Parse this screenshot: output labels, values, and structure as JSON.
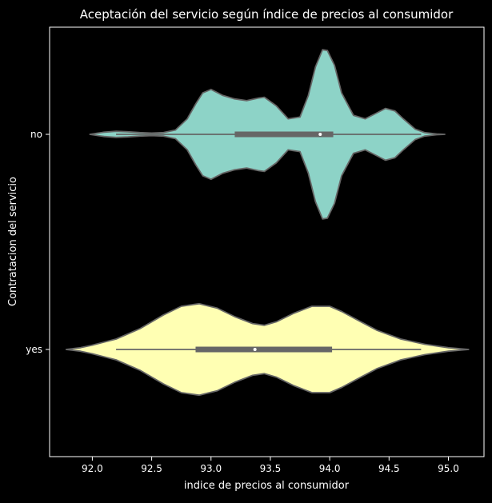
{
  "chart_data": {
    "type": "violin",
    "orientation": "horizontal",
    "title": "Aceptación del servicio según índice de precios al consumidor",
    "xlabel": "indice de precios al consumidor",
    "ylabel": "Contratacion del servicio",
    "xlim": [
      91.64,
      95.3
    ],
    "xticks": [
      92.0,
      92.5,
      93.0,
      93.5,
      94.0,
      94.5,
      95.0
    ],
    "xtick_labels": [
      "92.0",
      "92.5",
      "93.0",
      "93.5",
      "94.0",
      "94.5",
      "95.0"
    ],
    "categories": [
      "no",
      "yes"
    ],
    "series": [
      {
        "name": "no",
        "color": "#8dd3c7",
        "whisker": [
          92.2,
          94.77
        ],
        "q1": 93.2,
        "median": 93.92,
        "q3": 94.03,
        "density": [
          [
            91.98,
            0.0
          ],
          [
            92.05,
            0.015
          ],
          [
            92.1,
            0.025
          ],
          [
            92.2,
            0.035
          ],
          [
            92.3,
            0.03
          ],
          [
            92.4,
            0.02
          ],
          [
            92.5,
            0.015
          ],
          [
            92.6,
            0.02
          ],
          [
            92.7,
            0.05
          ],
          [
            92.8,
            0.18
          ],
          [
            92.87,
            0.35
          ],
          [
            92.93,
            0.48
          ],
          [
            93.0,
            0.52
          ],
          [
            93.1,
            0.45
          ],
          [
            93.2,
            0.41
          ],
          [
            93.3,
            0.39
          ],
          [
            93.4,
            0.42
          ],
          [
            93.45,
            0.43
          ],
          [
            93.55,
            0.33
          ],
          [
            93.65,
            0.18
          ],
          [
            93.75,
            0.2
          ],
          [
            93.82,
            0.45
          ],
          [
            93.88,
            0.78
          ],
          [
            93.94,
            0.98
          ],
          [
            93.98,
            0.97
          ],
          [
            94.04,
            0.8
          ],
          [
            94.1,
            0.48
          ],
          [
            94.2,
            0.22
          ],
          [
            94.3,
            0.18
          ],
          [
            94.4,
            0.25
          ],
          [
            94.47,
            0.3
          ],
          [
            94.55,
            0.27
          ],
          [
            94.62,
            0.18
          ],
          [
            94.72,
            0.06
          ],
          [
            94.8,
            0.02
          ],
          [
            94.9,
            0.005
          ],
          [
            94.97,
            0.0
          ]
        ]
      },
      {
        "name": "yes",
        "color": "#ffffb3",
        "whisker": [
          92.2,
          94.77
        ],
        "q1": 92.87,
        "median": 93.37,
        "q3": 94.02,
        "density": [
          [
            91.78,
            0.0
          ],
          [
            91.9,
            0.02
          ],
          [
            92.0,
            0.05
          ],
          [
            92.2,
            0.12
          ],
          [
            92.4,
            0.24
          ],
          [
            92.6,
            0.4
          ],
          [
            92.75,
            0.5
          ],
          [
            92.9,
            0.53
          ],
          [
            93.05,
            0.48
          ],
          [
            93.2,
            0.38
          ],
          [
            93.35,
            0.3
          ],
          [
            93.45,
            0.28
          ],
          [
            93.55,
            0.32
          ],
          [
            93.7,
            0.42
          ],
          [
            93.85,
            0.5
          ],
          [
            94.0,
            0.5
          ],
          [
            94.1,
            0.44
          ],
          [
            94.25,
            0.33
          ],
          [
            94.4,
            0.22
          ],
          [
            94.6,
            0.12
          ],
          [
            94.8,
            0.06
          ],
          [
            95.0,
            0.02
          ],
          [
            95.17,
            0.0
          ]
        ]
      }
    ]
  }
}
